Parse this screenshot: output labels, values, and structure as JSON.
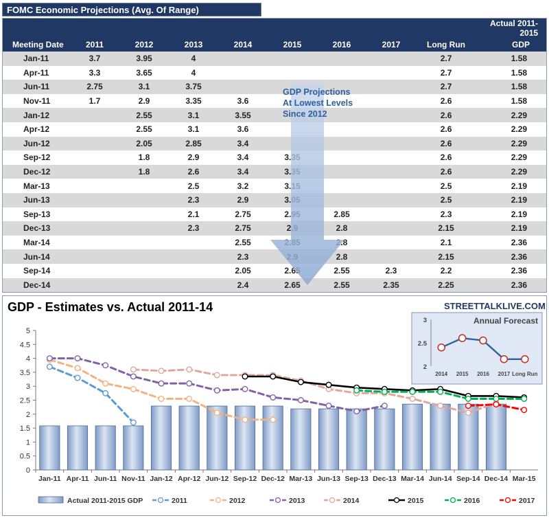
{
  "table": {
    "title": "FOMC Economic Projections (Avg. Of Range)",
    "actual_header_line1": "Actual 2011-2015",
    "headers": [
      "Meeting Date",
      "2011",
      "2012",
      "2013",
      "2014",
      "2015",
      "2016",
      "2017",
      "Long Run",
      "GDP"
    ],
    "rows": [
      {
        "date": "Jan-11",
        "c2011": "3.7",
        "c2012": "3.95",
        "c2013": "4",
        "c2014": "",
        "c2015": "",
        "c2016": "",
        "c2017": "",
        "lr": "2.7",
        "gdp": "1.58"
      },
      {
        "date": "Apr-11",
        "c2011": "3.3",
        "c2012": "3.65",
        "c2013": "4",
        "c2014": "",
        "c2015": "",
        "c2016": "",
        "c2017": "",
        "lr": "2.7",
        "gdp": "1.58"
      },
      {
        "date": "Jun-11",
        "c2011": "2.75",
        "c2012": "3.1",
        "c2013": "3.75",
        "c2014": "",
        "c2015": "",
        "c2016": "",
        "c2017": "",
        "lr": "2.7",
        "gdp": "1.58"
      },
      {
        "date": "Nov-11",
        "c2011": "1.7",
        "c2012": "2.9",
        "c2013": "3.35",
        "c2014": "3.6",
        "c2015": "",
        "c2016": "",
        "c2017": "",
        "lr": "2.6",
        "gdp": "1.58"
      },
      {
        "date": "Jan-12",
        "c2011": "",
        "c2012": "2.55",
        "c2013": "3.1",
        "c2014": "3.55",
        "c2015": "",
        "c2016": "",
        "c2017": "",
        "lr": "2.6",
        "gdp": "2.29"
      },
      {
        "date": "Apr-12",
        "c2011": "",
        "c2012": "2.55",
        "c2013": "3.1",
        "c2014": "3.6",
        "c2015": "",
        "c2016": "",
        "c2017": "",
        "lr": "2.6",
        "gdp": "2.29"
      },
      {
        "date": "Jun-12",
        "c2011": "",
        "c2012": "2.05",
        "c2013": "2.85",
        "c2014": "3.4",
        "c2015": "",
        "c2016": "",
        "c2017": "",
        "lr": "2.6",
        "gdp": "2.29"
      },
      {
        "date": "Sep-12",
        "c2011": "",
        "c2012": "1.8",
        "c2013": "2.9",
        "c2014": "3.4",
        "c2015": "3.35",
        "c2016": "",
        "c2017": "",
        "lr": "2.6",
        "gdp": "2.29"
      },
      {
        "date": "Dec-12",
        "c2011": "",
        "c2012": "1.8",
        "c2013": "2.6",
        "c2014": "3.4",
        "c2015": "3.35",
        "c2016": "",
        "c2017": "",
        "lr": "2.6",
        "gdp": "2.29"
      },
      {
        "date": "Mar-13",
        "c2011": "",
        "c2012": "",
        "c2013": "2.5",
        "c2014": "3.2",
        "c2015": "3.15",
        "c2016": "",
        "c2017": "",
        "lr": "2.5",
        "gdp": "2.19"
      },
      {
        "date": "Jun-13",
        "c2011": "",
        "c2012": "",
        "c2013": "2.3",
        "c2014": "2.9",
        "c2015": "3.05",
        "c2016": "",
        "c2017": "",
        "lr": "2.5",
        "gdp": "2.19"
      },
      {
        "date": "Sep-13",
        "c2011": "",
        "c2012": "",
        "c2013": "2.1",
        "c2014": "2.75",
        "c2015": "2.95",
        "c2016": "2.85",
        "c2017": "",
        "lr": "2.3",
        "gdp": "2.19"
      },
      {
        "date": "Dec-13",
        "c2011": "",
        "c2012": "",
        "c2013": "2.3",
        "c2014": "2.75",
        "c2015": "2.9",
        "c2016": "2.8",
        "c2017": "",
        "lr": "2.15",
        "gdp": "2.19"
      },
      {
        "date": "Mar-14",
        "c2011": "",
        "c2012": "",
        "c2013": "",
        "c2014": "2.55",
        "c2015": "2.85",
        "c2016": "2.8",
        "c2017": "",
        "lr": "2.1",
        "gdp": "2.36"
      },
      {
        "date": "Jun-14",
        "c2011": "",
        "c2012": "",
        "c2013": "",
        "c2014": "2.3",
        "c2015": "2.9",
        "c2016": "2.8",
        "c2017": "",
        "lr": "2.15",
        "gdp": "2.36"
      },
      {
        "date": "Sep-14",
        "c2011": "",
        "c2012": "",
        "c2013": "",
        "c2014": "2.05",
        "c2015": "2.65",
        "c2016": "2.55",
        "c2017": "2.3",
        "lr": "2.2",
        "gdp": "2.36"
      },
      {
        "date": "Dec-14",
        "c2011": "",
        "c2012": "",
        "c2013": "",
        "c2014": "2.4",
        "c2015": "2.65",
        "c2016": "2.55",
        "c2017": "2.35",
        "lr": "2.25",
        "gdp": "2.36"
      },
      {
        "date": "Mar-15",
        "c2011": "",
        "c2012": "",
        "c2013": "",
        "c2014": "",
        "c2015": "2.6",
        "c2016": "2.55",
        "c2017": "2.15",
        "lr": "2.15",
        "gdp": ""
      }
    ],
    "annotation": [
      "GDP Projections",
      "At Lowest Levels",
      "Since 2012"
    ],
    "highlight_color": "#ff0000",
    "header_color": "#1f3864"
  },
  "chart_data": [
    {
      "type": "bar",
      "title": "GDP - Estimates vs. Actual 2011-14",
      "source": "STREETTALKLIVE.COM",
      "categories": [
        "Jan-11",
        "Apr-11",
        "Jun-11",
        "Nov-11",
        "Jan-12",
        "Apr-12",
        "Jun-12",
        "Sep-12",
        "Dec-12",
        "Mar-13",
        "Jun-13",
        "Sep-13",
        "Dec-13",
        "Mar-14",
        "Jun-14",
        "Sep-14",
        "Dec-14",
        "Mar-15"
      ],
      "ylim": [
        0,
        5
      ],
      "yticks": [
        "0",
        "0.5",
        "1",
        "1.5",
        "2",
        "2.5",
        "3",
        "3.5",
        "4",
        "4.5",
        "5"
      ],
      "grid": false,
      "legend_position": "bottom",
      "series": [
        {
          "name": "Actual 2011-2015 GDP",
          "kind": "bar",
          "color": "#9fb6d8",
          "values": [
            1.58,
            1.58,
            1.58,
            1.58,
            2.29,
            2.29,
            2.29,
            2.29,
            2.29,
            2.19,
            2.19,
            2.19,
            2.19,
            2.36,
            2.36,
            2.36,
            2.36,
            null
          ]
        },
        {
          "name": "2011",
          "kind": "line",
          "color": "#5b9bd5",
          "dash": true,
          "values": [
            3.7,
            3.3,
            2.75,
            1.7,
            null,
            null,
            null,
            null,
            null,
            null,
            null,
            null,
            null,
            null,
            null,
            null,
            null,
            null
          ]
        },
        {
          "name": "2012",
          "kind": "line",
          "color": "#f4b183",
          "dash": true,
          "values": [
            3.95,
            3.65,
            3.1,
            2.9,
            2.55,
            2.55,
            2.05,
            1.8,
            1.8,
            null,
            null,
            null,
            null,
            null,
            null,
            null,
            null,
            null
          ]
        },
        {
          "name": "2013",
          "kind": "line",
          "color": "#7f62a8",
          "dash": true,
          "values": [
            4,
            4,
            3.75,
            3.35,
            3.1,
            3.1,
            2.85,
            2.9,
            2.6,
            2.5,
            2.3,
            2.1,
            2.3,
            null,
            null,
            null,
            null,
            null
          ]
        },
        {
          "name": "2014",
          "kind": "line",
          "color": "#e0a79c",
          "dash": true,
          "values": [
            null,
            null,
            null,
            3.6,
            3.55,
            3.6,
            3.4,
            3.4,
            3.4,
            3.2,
            2.9,
            2.75,
            2.75,
            2.55,
            2.3,
            2.05,
            2.4,
            null
          ]
        },
        {
          "name": "2015",
          "kind": "line",
          "color": "#000000",
          "dash": false,
          "values": [
            null,
            null,
            null,
            null,
            null,
            null,
            null,
            3.35,
            3.35,
            3.15,
            3.05,
            2.95,
            2.9,
            2.85,
            2.9,
            2.65,
            2.65,
            2.6
          ]
        },
        {
          "name": "2016",
          "kind": "line",
          "color": "#00b050",
          "dash": true,
          "values": [
            null,
            null,
            null,
            null,
            null,
            null,
            null,
            null,
            null,
            null,
            null,
            2.85,
            2.8,
            2.8,
            2.8,
            2.55,
            2.55,
            2.55
          ]
        },
        {
          "name": "2017",
          "kind": "line",
          "color": "#ff0000",
          "dash": true,
          "values": [
            null,
            null,
            null,
            null,
            null,
            null,
            null,
            null,
            null,
            null,
            null,
            null,
            null,
            null,
            null,
            2.3,
            2.35,
            2.15
          ]
        }
      ]
    },
    {
      "type": "line",
      "title": "Annual Forecast",
      "categories": [
        "2014",
        "2015",
        "2016",
        "2017",
        "Long Run"
      ],
      "values": [
        2.4,
        2.6,
        2.55,
        2.15,
        2.15
      ],
      "ylim": [
        2,
        3
      ],
      "yticks": [
        "2",
        "2.5",
        "3"
      ],
      "color": "#2e5f9e"
    }
  ]
}
